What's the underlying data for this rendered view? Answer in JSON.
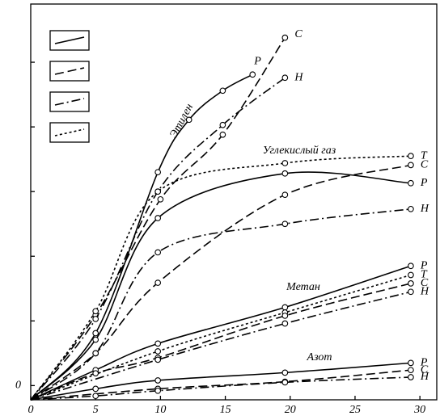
{
  "chart_data": {
    "type": "line",
    "xlim": [
      0,
      31.3
    ],
    "xticks": [
      0,
      5,
      10,
      15,
      20,
      25,
      30
    ],
    "ylim": [
      -0.22,
      5.9
    ],
    "yticks": [
      0,
      {
        "value": 1,
        "label": null
      },
      {
        "value": 2,
        "label": null
      },
      {
        "value": 3,
        "label": null
      },
      {
        "value": 4,
        "label": null
      },
      {
        "value": 5,
        "label": null
      }
    ],
    "color": "#000000",
    "legend": [
      {
        "dash": "solid"
      },
      {
        "dash": "dashed"
      },
      {
        "dash": "dashdot"
      },
      {
        "dash": "dotted"
      }
    ],
    "groups": [
      {
        "label": "Этилен",
        "series": [
          {
            "name": "P",
            "dash": "solid",
            "x": [
              0,
              5,
              9.8,
              12.2,
              14.8,
              17.1
            ],
            "values": [
              -0.22,
              0.81,
              3.3,
              4.11,
              4.56,
              4.81
            ]
          },
          {
            "name": "C",
            "dash": "dashed",
            "x": [
              0,
              5,
              10,
              14.8,
              19.6
            ],
            "values": [
              -0.22,
              1.09,
              2.88,
              3.88,
              5.38
            ]
          },
          {
            "name": "H",
            "dash": "dashdot",
            "x": [
              0,
              5,
              9.8,
              14.8,
              19.6
            ],
            "values": [
              -0.22,
              1.03,
              3.0,
              4.03,
              4.76
            ]
          }
        ]
      },
      {
        "label": "Углекислый газ",
        "series": [
          {
            "name": "T",
            "dash": "dotted",
            "x": [
              0,
              5,
              9.8,
              19.6,
              29.3
            ],
            "values": [
              -0.22,
              1.15,
              3.0,
              3.44,
              3.55
            ]
          },
          {
            "name": "C",
            "dash": "dashed",
            "x": [
              0,
              5,
              9.8,
              19.6,
              29.3
            ],
            "values": [
              -0.22,
              0.5,
              1.59,
              2.95,
              3.41
            ]
          },
          {
            "name": "P",
            "dash": "solid",
            "x": [
              0,
              5,
              9.8,
              19.6,
              29.3
            ],
            "values": [
              -0.22,
              0.71,
              2.59,
              3.28,
              3.13
            ]
          },
          {
            "name": "H",
            "dash": "dashdot",
            "x": [
              0,
              5,
              9.8,
              19.6,
              29.3
            ],
            "values": [
              -0.22,
              0.5,
              2.06,
              2.5,
              2.73
            ]
          }
        ]
      },
      {
        "label": "Метан",
        "series": [
          {
            "name": "P",
            "dash": "solid",
            "x": [
              0,
              5,
              9.8,
              19.6,
              29.3
            ],
            "values": [
              -0.22,
              0.24,
              0.65,
              1.21,
              1.85
            ]
          },
          {
            "name": "T",
            "dash": "dotted",
            "x": [
              0,
              9.8,
              19.6,
              29.3
            ],
            "values": [
              -0.22,
              0.53,
              1.13,
              1.71
            ]
          },
          {
            "name": "C",
            "dash": "dashed",
            "x": [
              0,
              5,
              9.8,
              19.6,
              29.3
            ],
            "values": [
              -0.22,
              0.19,
              0.43,
              1.08,
              1.58
            ]
          },
          {
            "name": "H",
            "dash": "dashdot",
            "x": [
              0,
              9.8,
              19.6,
              29.3
            ],
            "values": [
              -0.22,
              0.4,
              0.96,
              1.45
            ]
          }
        ]
      },
      {
        "label": "Азот",
        "series": [
          {
            "name": "P",
            "dash": "solid",
            "x": [
              0,
              5,
              9.8,
              19.6,
              29.3
            ],
            "values": [
              -0.22,
              -0.05,
              0.08,
              0.2,
              0.35
            ]
          },
          {
            "name": "C",
            "dash": "dashed",
            "x": [
              0,
              9.8,
              19.6,
              29.3
            ],
            "values": [
              -0.22,
              -0.05,
              0.06,
              0.24
            ]
          },
          {
            "name": "H",
            "dash": "dashdot",
            "x": [
              0,
              5,
              9.8,
              19.6,
              29.3
            ],
            "values": [
              -0.22,
              -0.16,
              -0.08,
              0.05,
              0.13
            ]
          }
        ]
      }
    ]
  }
}
